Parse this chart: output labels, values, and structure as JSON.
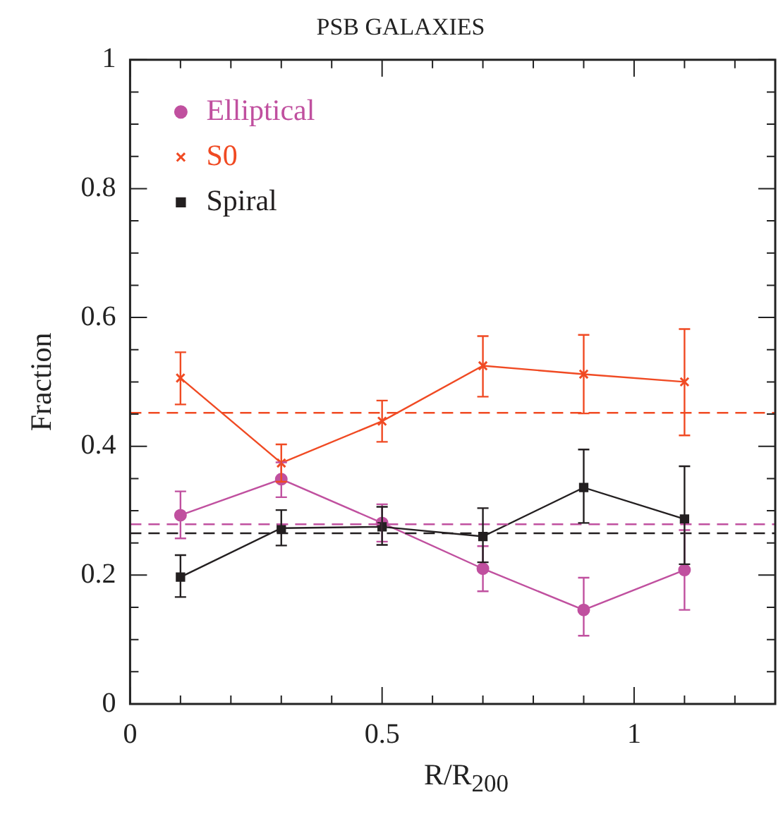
{
  "chart_data": {
    "type": "line",
    "title": "PSB GALAXIES",
    "xlabel": "R/R$_{200}$",
    "ylabel": "Fraction",
    "x": [
      0.1,
      0.3,
      0.5,
      0.7,
      0.9,
      1.1
    ],
    "series": [
      {
        "name": "Elliptical",
        "color": "#c0509f",
        "marker": "circle",
        "values": [
          0.293,
          0.349,
          0.281,
          0.21,
          0.146,
          0.208
        ],
        "errors": [
          [
            0.257,
            0.33
          ],
          [
            0.321,
            0.375
          ],
          [
            0.252,
            0.31
          ],
          [
            0.175,
            0.245
          ],
          [
            0.106,
            0.196
          ],
          [
            0.146,
            0.27
          ]
        ]
      },
      {
        "name": "S0",
        "color": "#f04a23",
        "marker": "cross",
        "values": [
          0.506,
          0.374,
          0.439,
          0.525,
          0.512,
          0.5
        ],
        "errors": [
          [
            0.465,
            0.546
          ],
          [
            0.345,
            0.403
          ],
          [
            0.407,
            0.471
          ],
          [
            0.477,
            0.571
          ],
          [
            0.451,
            0.573
          ],
          [
            0.417,
            0.582
          ]
        ]
      },
      {
        "name": "Spiral",
        "color": "#231f20",
        "marker": "square",
        "values": [
          0.197,
          0.273,
          0.275,
          0.26,
          0.336,
          0.287
        ],
        "errors": [
          [
            0.166,
            0.231
          ],
          [
            0.246,
            0.301
          ],
          [
            0.247,
            0.306
          ],
          [
            0.22,
            0.304
          ],
          [
            0.281,
            0.395
          ],
          [
            0.217,
            0.369
          ]
        ]
      }
    ],
    "ref_lines": [
      {
        "axis": "y",
        "value": 0.452,
        "color": "#f04a23",
        "line_style": "dashed"
      },
      {
        "axis": "y",
        "value": 0.279,
        "color": "#c0509f",
        "line_style": "dashed"
      },
      {
        "axis": "y",
        "value": 0.265,
        "color": "#231f20",
        "line_style": "dashed"
      }
    ],
    "xlim": [
      0,
      1.28
    ],
    "xticks": [
      0,
      {
        "value": 0.1,
        "label": null
      },
      {
        "value": 0.2,
        "label": null
      },
      {
        "value": 0.3,
        "label": null
      },
      {
        "value": 0.4,
        "label": null
      },
      0.5,
      {
        "value": 0.6,
        "label": null
      },
      {
        "value": 0.7,
        "label": null
      },
      {
        "value": 0.8,
        "label": null
      },
      {
        "value": 0.9,
        "label": null
      },
      1,
      {
        "value": 1.1,
        "label": null
      },
      {
        "value": 1.2,
        "label": null
      }
    ],
    "ylim": [
      0,
      1
    ],
    "yticks": [
      0,
      {
        "value": 0.05,
        "label": null
      },
      {
        "value": 0.1,
        "label": null
      },
      {
        "value": 0.15,
        "label": null
      },
      0.2,
      {
        "value": 0.25,
        "label": null
      },
      {
        "value": 0.3,
        "label": null
      },
      {
        "value": 0.35,
        "label": null
      },
      0.4,
      {
        "value": 0.45,
        "label": null
      },
      {
        "value": 0.5,
        "label": null
      },
      {
        "value": 0.55,
        "label": null
      },
      0.6,
      {
        "value": 0.65,
        "label": null
      },
      {
        "value": 0.7,
        "label": null
      },
      {
        "value": 0.75,
        "label": null
      },
      0.8,
      {
        "value": 0.85,
        "label": null
      },
      {
        "value": 0.9,
        "label": null
      },
      {
        "value": 0.95,
        "label": null
      },
      1
    ],
    "grid": false,
    "legend": "top left"
  }
}
